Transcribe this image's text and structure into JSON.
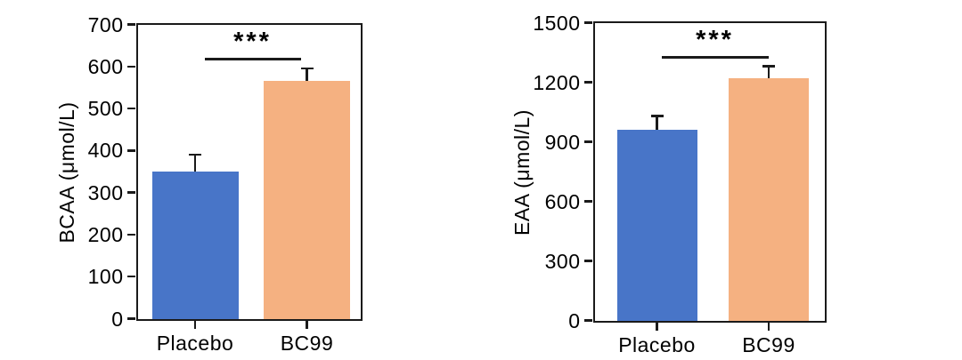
{
  "figure": {
    "background": "#ffffff"
  },
  "colors": {
    "axis": "#1a1a1a",
    "text": "#000000",
    "placebo_blue": "#4875C8",
    "bc99_orange": "#F5B181"
  },
  "chart_data": [
    {
      "type": "bar",
      "title": "",
      "xlabel": "",
      "ylabel": "BCAA (μmol/L)",
      "categories": [
        "Placebo",
        "BC99"
      ],
      "values": [
        350,
        565
      ],
      "errors_upper": [
        40,
        30
      ],
      "ylim": [
        0,
        700
      ],
      "yticks": [
        0,
        100,
        200,
        300,
        400,
        500,
        600,
        700
      ],
      "bar_colors": [
        "#4875C8",
        "#F5B181"
      ],
      "grid": false,
      "legend": "none",
      "frame": "box",
      "significance": {
        "label": "***",
        "y": 620,
        "between": [
          "Placebo",
          "BC99"
        ]
      }
    },
    {
      "type": "bar",
      "title": "",
      "xlabel": "",
      "ylabel": "EAA (μmol/L)",
      "categories": [
        "Placebo",
        "BC99"
      ],
      "values": [
        960,
        1220
      ],
      "errors_upper": [
        70,
        60
      ],
      "ylim": [
        0,
        1500
      ],
      "yticks": [
        0,
        300,
        600,
        900,
        1200,
        1500
      ],
      "bar_colors": [
        "#4875C8",
        "#F5B181"
      ],
      "grid": false,
      "legend": "none",
      "frame": "box",
      "significance": {
        "label": "***",
        "y": 1330,
        "between": [
          "Placebo",
          "BC99"
        ]
      }
    }
  ]
}
